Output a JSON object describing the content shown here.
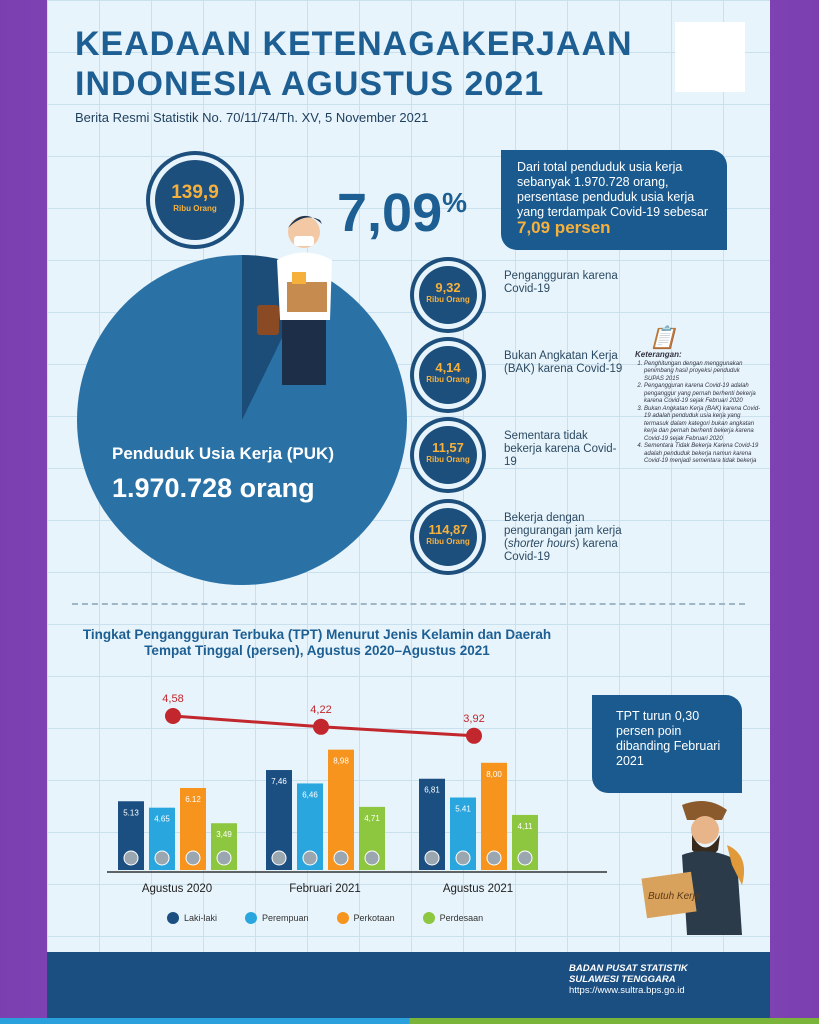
{
  "header": {
    "title_line1": "KEADAAN KETENAGAKERJAAN",
    "title_line2": "INDONESIA AGUSTUS 2021",
    "subtitle": "Berita Resmi Statistik No. 70/11/74/Th. XV, 5 November 2021"
  },
  "affected": {
    "value": "139,9",
    "unit": "Ribu Orang",
    "percent": "7,09",
    "percent_sign": "%"
  },
  "puk": {
    "label": "Penduduk Usia Kerja (PUK)",
    "value": "1.970.728 orang"
  },
  "info_box": {
    "text": "Dari total penduduk usia kerja sebanyak 1.970.728 orang, persentase penduduk usia kerja yang terdampak Covid-19 sebesar",
    "highlight": "7,09 persen"
  },
  "components": [
    {
      "value": "9,32",
      "unit": "Ribu Orang",
      "label": "Pengangguran karena Covid-19"
    },
    {
      "value": "4,14",
      "unit": "Ribu Orang",
      "label": "Bukan Angkatan Kerja (BAK) karena Covid-19"
    },
    {
      "value": "11,57",
      "unit": "Ribu Orang",
      "label": "Sementara tidak bekerja karena Covid-19"
    },
    {
      "value": "114,87",
      "unit": "Ribu Orang",
      "label_pre": "Bekerja dengan pengurangan jam kerja (",
      "label_em": "shorter hours",
      "label_post": ") karena Covid-19"
    }
  ],
  "notes": {
    "title": "Keterangan:",
    "items": [
      "Penghitungan dengan menggunakan penimbang hasil proyeksi penduduk SUPAS 2015",
      "Pengangguran karena Covid-19 adalah penganggur yang pernah berhenti bekerja karena Covid-19 sejak Februari 2020",
      "Bukan Angkatan Kerja (BAK) karena Covid-19 adalah penduduk usia kerja yang termasuk dalam kategori bukan angkatan kerja dan pernah berhenti bekerja karena Covid-19 sejak Februari 2020",
      "Sementara Tidak Bekerja Karena Covid-19 adalah penduduk bekerja namun karena Covid-19 menjadi sementara tidak bekerja"
    ]
  },
  "chart_data": {
    "type": "bar",
    "title": "Tingkat Pengangguran Terbuka (TPT) Menurut Jenis Kelamin dan Daerah Tempat Tinggal (persen), Agustus 2020–Agustus 2021",
    "categories": [
      "Agustus 2020",
      "Februari 2021",
      "Agustus 2021"
    ],
    "series": [
      {
        "name": "Laki-laki",
        "color": "#1b4f82",
        "values": [
          5.13,
          7.46,
          6.81
        ],
        "labels": [
          "5.13",
          "7,46",
          "6,81"
        ]
      },
      {
        "name": "Perempuan",
        "color": "#2aa6df",
        "values": [
          4.65,
          6.46,
          5.41
        ],
        "labels": [
          "4.65",
          "6,46",
          "5.41"
        ]
      },
      {
        "name": "Perkotaan",
        "color": "#f7941d",
        "values": [
          6.12,
          8.98,
          8.0
        ],
        "labels": [
          "6.12",
          "8,98",
          "8,00"
        ]
      },
      {
        "name": "Perdesaan",
        "color": "#8dc63f",
        "values": [
          3.49,
          4.71,
          4.11
        ],
        "labels": [
          "3,49",
          "4,71",
          "4,11"
        ]
      }
    ],
    "line": {
      "color": "#c1272d",
      "values": [
        4.58,
        4.22,
        3.92
      ],
      "labels": [
        "4,58",
        "4,22",
        "3,92"
      ]
    }
  },
  "tpt_box": {
    "text": "TPT turun 0,30 persen poin dibanding Februari 2021"
  },
  "sign_text": "Butuh Kerja",
  "footer": {
    "org1": "BADAN PUSAT STATISTIK",
    "org2": "SULAWESI TENGGARA",
    "url": "https://www.sultra.bps.go.id"
  }
}
